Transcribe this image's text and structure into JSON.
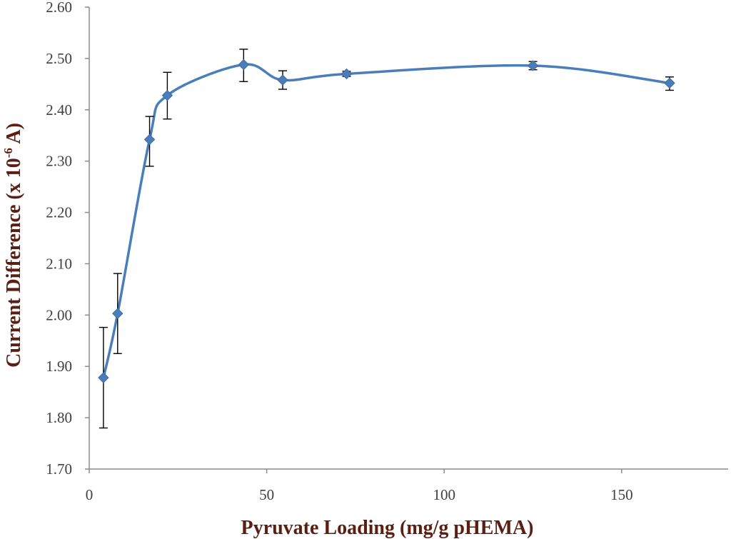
{
  "chart_data": {
    "type": "scatter",
    "xlabel": "Pyruvate Loading (mg/g pHEMA)",
    "ylabel_main": "Current Difference (x 10",
    "ylabel_exp": "-6",
    "ylabel_end": " A)",
    "xlim": [
      0,
      180
    ],
    "ylim": [
      1.7,
      2.6
    ],
    "x_ticks": [
      0,
      50,
      100,
      150
    ],
    "x_tick_labels": [
      "0",
      "50",
      "100",
      "150"
    ],
    "y_ticks": [
      1.7,
      1.8,
      1.9,
      2.0,
      2.1,
      2.2,
      2.3,
      2.4,
      2.5,
      2.6
    ],
    "y_tick_labels": [
      "1.70",
      "1.80",
      "1.90",
      "2.00",
      "2.10",
      "2.20",
      "2.30",
      "2.40",
      "2.50",
      "2.60"
    ],
    "grid": false,
    "line_style": "smoothed",
    "marker": "diamond",
    "series": [
      {
        "color": "#4a7ebb",
        "x": [
          4,
          8,
          17,
          22,
          43.5,
          54.5,
          72.5,
          125,
          163.5
        ],
        "y": [
          1.878,
          2.003,
          2.342,
          2.428,
          2.488,
          2.458,
          2.47,
          2.486,
          2.452
        ],
        "err_low": [
          0.098,
          0.078,
          0.052,
          0.046,
          0.033,
          0.018,
          0.005,
          0.008,
          0.014
        ],
        "err_high": [
          0.098,
          0.078,
          0.045,
          0.045,
          0.03,
          0.018,
          0.005,
          0.008,
          0.012
        ]
      }
    ]
  }
}
